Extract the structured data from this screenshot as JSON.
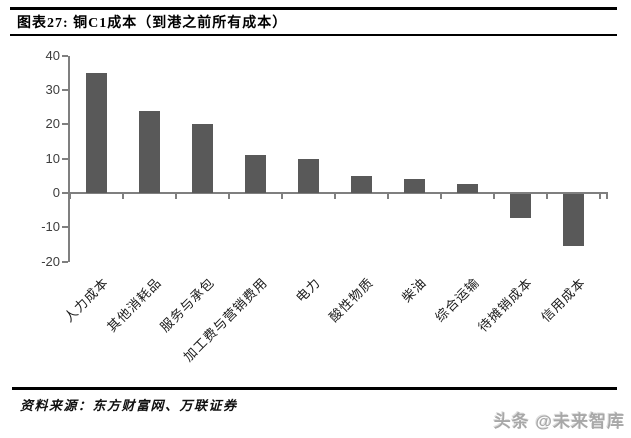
{
  "header": {
    "title": "图表27: 铜C1成本（到港之前所有成本）"
  },
  "footer": {
    "source": "资料来源：东方财富网、万联证券",
    "watermark": "头条 @未来智库"
  },
  "chart_data": {
    "type": "bar",
    "title": "铜C1成本（到港之前所有成本）",
    "categories": [
      "人力成本",
      "其他消耗品",
      "服务与承包",
      "加工费与营销费用",
      "电力",
      "酸性物质",
      "柴油",
      "综合运输",
      "待摊销成本",
      "信用成本"
    ],
    "values": [
      35,
      24,
      20,
      11,
      10,
      5,
      4,
      2.5,
      -7,
      -15
    ],
    "xlabel": "",
    "ylabel": "",
    "ylim": [
      -20,
      40
    ],
    "yticks": [
      40,
      30,
      20,
      10,
      0,
      -10,
      -20
    ],
    "grid": false,
    "legend": null,
    "bar_color": "#595959",
    "axis_color": "#7f7f7f"
  }
}
